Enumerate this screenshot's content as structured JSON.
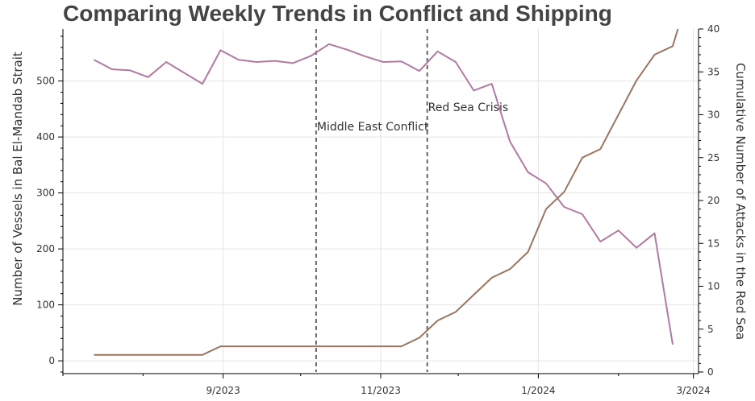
{
  "chart_data": {
    "type": "line",
    "title": "Comparing Weekly Trends in Conflict and Shipping",
    "ylabel_left": "Number of Vessels in Bal El-Mandab Strait",
    "ylabel_right": "Cumulative Number of Attacks in the Red Sea",
    "x_ticks": [
      "9/2023",
      "11/2023",
      "1/2024",
      "3/2024"
    ],
    "x_tick_dates": [
      "2023-09-01",
      "2023-11-01",
      "2024-01-01",
      "2024-03-01"
    ],
    "xlim": [
      "2023-07-01",
      "2024-03-03"
    ],
    "ylim_left": [
      -20,
      593
    ],
    "ylim_right": [
      0,
      40
    ],
    "y_ticks_left": [
      0,
      100,
      200,
      300,
      400,
      500
    ],
    "y_ticks_right": [
      0,
      5,
      10,
      15,
      20,
      25,
      30,
      35,
      40
    ],
    "grid": true,
    "annotations": [
      {
        "label": "Middle East Conflict",
        "date": "2023-10-07"
      },
      {
        "label": "Red Sea Crisis",
        "date": "2023-11-19"
      }
    ],
    "series": [
      {
        "axis": "left",
        "color": "#b07aa1",
        "points": [
          [
            "2023-07-13",
            538
          ],
          [
            "2023-07-20",
            521
          ],
          [
            "2023-07-27",
            519
          ],
          [
            "2023-08-03",
            507
          ],
          [
            "2023-08-10",
            534
          ],
          [
            "2023-08-24",
            495
          ],
          [
            "2023-08-31",
            555
          ],
          [
            "2023-09-07",
            538
          ],
          [
            "2023-09-14",
            534
          ],
          [
            "2023-09-21",
            536
          ],
          [
            "2023-09-28",
            532
          ],
          [
            "2023-10-05",
            545
          ],
          [
            "2023-10-12",
            566
          ],
          [
            "2023-10-19",
            556
          ],
          [
            "2023-10-26",
            544
          ],
          [
            "2023-11-02",
            534
          ],
          [
            "2023-11-09",
            535
          ],
          [
            "2023-11-16",
            518
          ],
          [
            "2023-11-23",
            553
          ],
          [
            "2023-11-30",
            534
          ],
          [
            "2023-12-07",
            483
          ],
          [
            "2023-12-14",
            495
          ],
          [
            "2023-12-21",
            392
          ],
          [
            "2023-12-28",
            337
          ],
          [
            "2024-01-04",
            317
          ],
          [
            "2024-01-11",
            275
          ],
          [
            "2024-01-18",
            262
          ],
          [
            "2024-01-25",
            213
          ],
          [
            "2024-02-01",
            233
          ],
          [
            "2024-02-08",
            202
          ],
          [
            "2024-02-15",
            228
          ],
          [
            "2024-02-22",
            29
          ]
        ]
      },
      {
        "axis": "right",
        "color": "#9c755f",
        "points": [
          [
            "2023-07-13",
            2
          ],
          [
            "2023-08-24",
            2
          ],
          [
            "2023-08-31",
            3
          ],
          [
            "2023-11-09",
            3
          ],
          [
            "2023-11-16",
            4
          ],
          [
            "2023-11-23",
            6
          ],
          [
            "2023-11-30",
            7
          ],
          [
            "2023-12-07",
            9
          ],
          [
            "2023-12-14",
            11
          ],
          [
            "2023-12-21",
            12
          ],
          [
            "2023-12-28",
            14
          ],
          [
            "2024-01-04",
            19
          ],
          [
            "2024-01-11",
            21
          ],
          [
            "2024-01-18",
            25
          ],
          [
            "2024-01-25",
            26
          ],
          [
            "2024-02-01",
            30
          ],
          [
            "2024-02-08",
            34
          ],
          [
            "2024-02-15",
            37
          ],
          [
            "2024-02-22",
            38
          ],
          [
            "2024-02-24",
            40
          ]
        ]
      }
    ]
  }
}
